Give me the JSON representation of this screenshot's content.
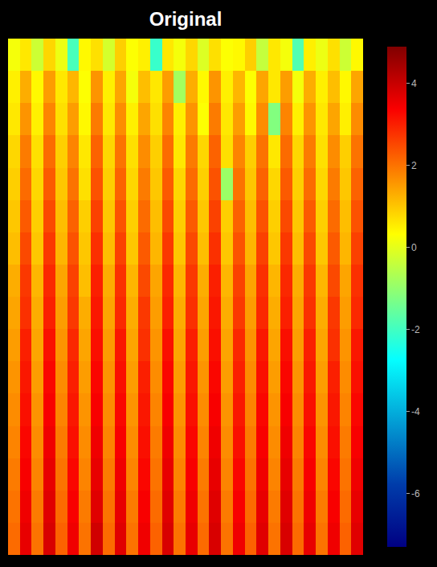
{
  "chart_data": {
    "type": "heatmap",
    "title": "Original",
    "color": "jet",
    "tick_labels": false,
    "colorbar": {
      "range": [
        -7.3,
        4.9
      ],
      "ticks": [
        -6,
        -4,
        -2,
        0,
        2,
        4
      ]
    },
    "z": [
      [
        0.2,
        0.6,
        -0.3,
        0.8,
        0.1,
        -1.9,
        0.4,
        0.7,
        -0.2,
        0.9,
        0.3,
        0.5,
        -2.1,
        0.6,
        0.2,
        0.8,
        -0.1,
        0.7,
        0.3,
        0.4,
        0.9,
        -0.4,
        0.6,
        0.2,
        -1.8,
        0.5,
        0.1,
        0.7,
        -0.3,
        0.4
      ],
      [
        0.5,
        1.3,
        0.4,
        1.5,
        0.6,
        1.2,
        0.3,
        1.6,
        0.5,
        1.4,
        0.2,
        1.1,
        0.6,
        1.5,
        -0.8,
        1.3,
        0.4,
        1.6,
        0.5,
        1.2,
        0.3,
        1.4,
        0.6,
        1.5,
        0.2,
        1.3,
        0.5,
        1.1,
        0.4,
        1.4
      ],
      [
        0.6,
        1.6,
        0.5,
        1.8,
        0.7,
        1.5,
        0.4,
        1.9,
        0.6,
        1.7,
        0.5,
        1.4,
        0.7,
        1.8,
        0.5,
        1.6,
        0.3,
        1.9,
        0.6,
        1.5,
        0.4,
        1.7,
        -1.2,
        1.8,
        0.5,
        1.6,
        0.6,
        1.4,
        0.5,
        1.7
      ],
      [
        0.8,
        1.9,
        0.7,
        2.1,
        0.9,
        1.8,
        0.6,
        2.2,
        0.8,
        2.0,
        0.7,
        1.7,
        0.9,
        2.1,
        0.6,
        1.9,
        0.8,
        2.2,
        0.7,
        1.8,
        0.9,
        2.0,
        0.6,
        2.1,
        0.8,
        1.9,
        0.7,
        1.7,
        0.9,
        2.0
      ],
      [
        0.9,
        2.1,
        0.8,
        2.3,
        1.0,
        2.0,
        0.7,
        2.4,
        0.9,
        2.2,
        0.8,
        1.9,
        1.0,
        2.3,
        0.8,
        2.1,
        0.9,
        2.4,
        -0.9,
        2.0,
        1.0,
        2.2,
        0.8,
        2.3,
        0.9,
        2.1,
        0.8,
        1.9,
        1.0,
        2.2
      ],
      [
        1.0,
        2.3,
        0.9,
        2.5,
        1.1,
        2.2,
        0.9,
        2.6,
        1.0,
        2.4,
        0.9,
        2.1,
        1.1,
        2.5,
        0.9,
        2.3,
        1.0,
        2.6,
        0.9,
        2.2,
        1.1,
        2.4,
        0.9,
        2.5,
        1.0,
        2.3,
        0.9,
        2.1,
        1.1,
        2.4
      ],
      [
        1.1,
        2.5,
        1.0,
        2.7,
        1.2,
        2.4,
        1.0,
        2.8,
        1.1,
        2.6,
        1.0,
        2.3,
        1.2,
        2.7,
        1.0,
        2.5,
        1.1,
        2.8,
        1.0,
        2.4,
        1.2,
        2.6,
        1.0,
        2.7,
        1.1,
        2.5,
        1.0,
        2.3,
        1.2,
        2.6
      ],
      [
        1.3,
        2.7,
        1.2,
        2.9,
        1.4,
        2.6,
        1.1,
        3.0,
        1.3,
        2.8,
        1.2,
        2.5,
        1.4,
        2.9,
        1.2,
        2.7,
        1.3,
        3.0,
        1.2,
        2.6,
        1.4,
        2.8,
        1.2,
        2.9,
        1.3,
        2.7,
        1.2,
        2.5,
        1.4,
        2.8
      ],
      [
        1.4,
        2.8,
        1.3,
        3.0,
        1.5,
        2.7,
        1.3,
        3.1,
        1.4,
        2.9,
        1.3,
        2.7,
        1.5,
        3.0,
        1.3,
        2.8,
        1.4,
        3.1,
        1.3,
        2.7,
        1.5,
        2.9,
        1.3,
        3.0,
        1.4,
        2.8,
        1.3,
        2.7,
        1.5,
        2.9
      ],
      [
        1.5,
        3.0,
        1.4,
        3.2,
        1.6,
        2.9,
        1.4,
        3.2,
        1.5,
        3.1,
        1.4,
        2.8,
        1.6,
        3.2,
        1.4,
        3.0,
        1.5,
        3.2,
        1.4,
        2.9,
        1.6,
        3.1,
        1.4,
        3.2,
        1.5,
        3.0,
        1.4,
        2.8,
        1.6,
        3.1
      ],
      [
        1.6,
        3.1,
        1.5,
        3.3,
        1.7,
        3.0,
        1.5,
        3.3,
        1.6,
        3.2,
        1.5,
        3.0,
        1.7,
        3.3,
        1.5,
        3.1,
        1.6,
        3.3,
        1.5,
        3.0,
        1.7,
        3.2,
        1.5,
        3.3,
        1.6,
        3.1,
        1.5,
        3.0,
        1.7,
        3.2
      ],
      [
        1.7,
        3.2,
        1.6,
        3.4,
        1.8,
        3.1,
        1.6,
        3.4,
        1.7,
        3.3,
        1.6,
        3.1,
        1.8,
        3.4,
        1.6,
        3.2,
        1.7,
        3.4,
        1.6,
        3.1,
        1.8,
        3.3,
        1.6,
        3.4,
        1.7,
        3.2,
        1.6,
        3.1,
        1.8,
        3.3
      ],
      [
        1.8,
        3.3,
        1.7,
        3.5,
        1.9,
        3.2,
        1.7,
        3.5,
        1.8,
        3.4,
        1.7,
        3.2,
        1.9,
        3.5,
        1.7,
        3.3,
        1.8,
        3.5,
        1.7,
        3.2,
        1.9,
        3.4,
        1.7,
        3.5,
        1.8,
        3.3,
        1.7,
        3.2,
        1.9,
        3.4
      ],
      [
        1.9,
        3.4,
        1.8,
        3.6,
        2.0,
        3.3,
        1.8,
        3.6,
        1.9,
        3.5,
        1.8,
        3.3,
        2.0,
        3.6,
        1.8,
        3.4,
        1.9,
        3.6,
        1.8,
        3.3,
        2.0,
        3.5,
        1.8,
        3.6,
        1.9,
        3.4,
        1.8,
        3.3,
        2.0,
        3.5
      ],
      [
        2.0,
        3.5,
        1.9,
        3.7,
        2.1,
        3.4,
        1.9,
        3.7,
        2.0,
        3.6,
        1.9,
        3.4,
        2.1,
        3.7,
        1.9,
        3.5,
        2.0,
        3.7,
        1.9,
        3.4,
        2.1,
        3.6,
        1.9,
        3.7,
        2.0,
        3.5,
        1.9,
        3.4,
        2.1,
        3.6
      ],
      [
        2.1,
        3.6,
        2.0,
        3.8,
        2.2,
        3.5,
        2.0,
        3.9,
        2.1,
        3.7,
        2.0,
        3.5,
        2.2,
        3.8,
        2.0,
        3.6,
        2.1,
        3.8,
        2.0,
        3.5,
        2.2,
        3.7,
        2.0,
        3.8,
        2.1,
        3.6,
        2.0,
        3.5,
        2.2,
        3.7
      ]
    ]
  }
}
